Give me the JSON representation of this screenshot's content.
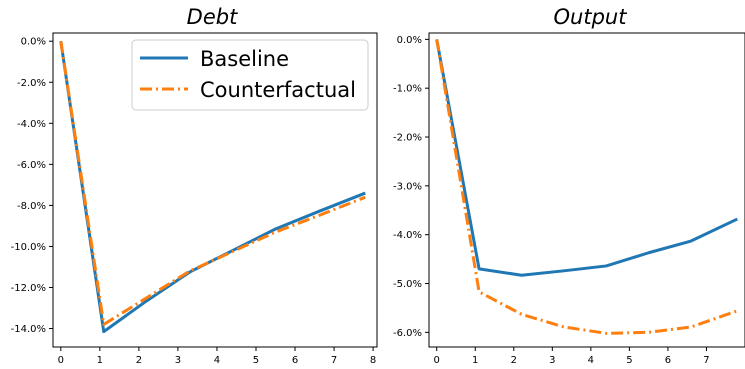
{
  "chart_data": [
    {
      "type": "line",
      "title": "Debt",
      "xlabel": "",
      "ylabel": "",
      "xlim": [
        -0.2,
        8.1
      ],
      "ylim": [
        -14.9,
        0.4
      ],
      "xticks": [
        0,
        1,
        2,
        3,
        4,
        5,
        6,
        7,
        8
      ],
      "xtick_labels": [
        "0",
        "1",
        "2",
        "3",
        "4",
        "5",
        "6",
        "7",
        "8"
      ],
      "yticks": [
        0,
        -2,
        -4,
        -6,
        -8,
        -10,
        -12,
        -14
      ],
      "ytick_labels": [
        "0.0%",
        "-2.0%",
        "-4.0%",
        "-6.0%",
        "-8.0%",
        "-10.0%",
        "-12.0%",
        "-14.0%"
      ],
      "grid": false,
      "legend": {
        "placement": "top-right"
      },
      "series": [
        {
          "name": "Baseline",
          "color": "#1f77b4",
          "style": "solid",
          "x": [
            0,
            1.1,
            2.2,
            3.3,
            4.4,
            5.5,
            6.6,
            7.8
          ],
          "y": [
            0,
            -14.15,
            -12.65,
            -11.25,
            -10.2,
            -9.15,
            -8.3,
            -7.4
          ]
        },
        {
          "name": "Counterfactual",
          "color": "#ff7f0e",
          "style": "dashdot",
          "x": [
            0,
            1.1,
            2.2,
            3.3,
            4.4,
            5.5,
            6.6,
            7.8
          ],
          "y": [
            0,
            -13.8,
            -12.5,
            -11.2,
            -10.25,
            -9.3,
            -8.5,
            -7.6
          ]
        }
      ]
    },
    {
      "type": "line",
      "title": "Output",
      "xlabel": "",
      "ylabel": "",
      "xlim": [
        -0.2,
        8.0
      ],
      "ylim": [
        -6.3,
        0.13
      ],
      "xticks": [
        0,
        1,
        2,
        3,
        4,
        5,
        6,
        7
      ],
      "xtick_labels": [
        "0",
        "1",
        "2",
        "3",
        "4",
        "5",
        "6",
        "7"
      ],
      "yticks": [
        0,
        -1,
        -2,
        -3,
        -4,
        -5,
        -6
      ],
      "ytick_labels": [
        "0.0%",
        "-1.0%",
        "-2.0%",
        "-3.0%",
        "-4.0%",
        "-5.0%",
        "-6.0%"
      ],
      "grid": false,
      "series": [
        {
          "name": "Baseline",
          "color": "#1f77b4",
          "style": "solid",
          "x": [
            0,
            1.1,
            2.2,
            3.3,
            4.4,
            5.5,
            6.6,
            7.8
          ],
          "y": [
            0,
            -4.7,
            -4.83,
            -4.74,
            -4.64,
            -4.37,
            -4.13,
            -3.68
          ]
        },
        {
          "name": "Counterfactual",
          "color": "#ff7f0e",
          "style": "dashdot",
          "x": [
            0,
            1.1,
            2.2,
            3.3,
            4.4,
            5.5,
            6.6,
            7.8
          ],
          "y": [
            0,
            -5.17,
            -5.63,
            -5.89,
            -6.02,
            -6.0,
            -5.89,
            -5.56
          ]
        }
      ]
    }
  ]
}
